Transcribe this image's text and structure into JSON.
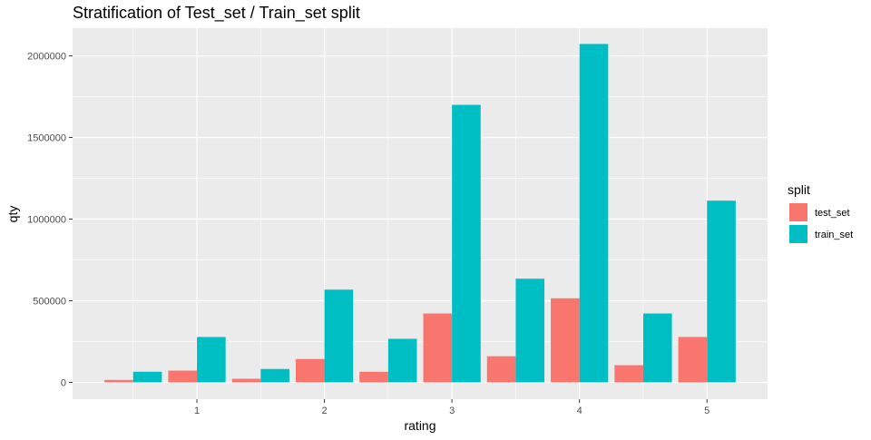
{
  "chart_data": {
    "type": "bar",
    "title": "Stratification of Test_set / Train_set split",
    "xlabel": "rating",
    "ylabel": "qty",
    "x": [
      0.5,
      1,
      1.5,
      2,
      2.5,
      3,
      3.5,
      4,
      4.5,
      5
    ],
    "x_ticks": [
      1,
      2,
      3,
      4,
      5
    ],
    "y_ticks": [
      0,
      500000,
      1000000,
      1500000,
      2000000
    ],
    "y_tick_labels": [
      "0",
      "500000",
      "1000000",
      "1500000",
      "2000000"
    ],
    "xlim": [
      0.025,
      5.475
    ],
    "ylim": [
      -103000,
      2170000
    ],
    "series": [
      {
        "name": "test_set",
        "color": "#F8766D",
        "values": [
          15000,
          72000,
          22000,
          143000,
          65000,
          422000,
          160000,
          515000,
          105000,
          278000
        ]
      },
      {
        "name": "train_set",
        "color": "#00BFC4",
        "values": [
          65000,
          278000,
          82000,
          568000,
          267000,
          1700000,
          635000,
          2073000,
          422000,
          1113000
        ]
      }
    ],
    "legend": {
      "title": "split",
      "position": "right"
    },
    "grid": true,
    "panel_background": "#EBEBEB"
  }
}
